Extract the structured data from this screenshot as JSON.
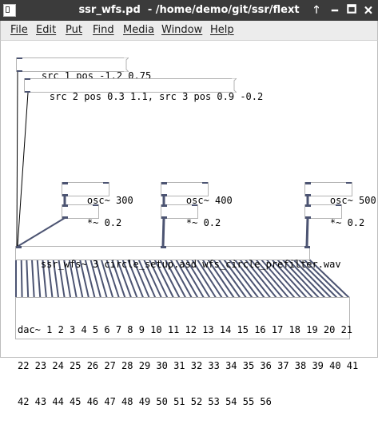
{
  "window": {
    "title": "ssr_wfs.pd  - /home/demo/git/ssr/flext",
    "controls": {
      "up": "🡑",
      "minimize": "🗕",
      "maximize": "🗖",
      "close": "🗙"
    }
  },
  "menu": [
    "File",
    "Edit",
    "Put",
    "Find",
    "Media",
    "Window",
    "Help"
  ],
  "canvas": {
    "msg1": "src 1 pos -1.2 0.75",
    "msg2": "src 2 pos 0.3 1.1, src 3 pos 0.9 -0.2",
    "osc1": "osc~ 300",
    "osc2": "osc~ 400",
    "osc3": "osc~ 500",
    "mul1": "*~ 0.2",
    "mul2": "*~ 0.2",
    "mul3": "*~ 0.2",
    "ssr": "ssr_wfs~ 3 circle_setup.asd wfs_circle_prefilter.wav",
    "dac_line1": "dac~ 1 2 3 4 5 6 7 8 9 10 11 12 13 14 15 16 17 18 19 20 21",
    "dac_line2": "22 23 24 25 26 27 28 29 30 31 32 33 34 35 36 37 38 39 40 41",
    "dac_line3": "42 43 44 45 46 47 48 49 50 51 52 53 54 55 56"
  },
  "colors": {
    "titlebar": "#3b3b3b",
    "menubar": "#ececec",
    "patchcord_signal": "#4c5472",
    "box_border": "#b3b3b3"
  }
}
